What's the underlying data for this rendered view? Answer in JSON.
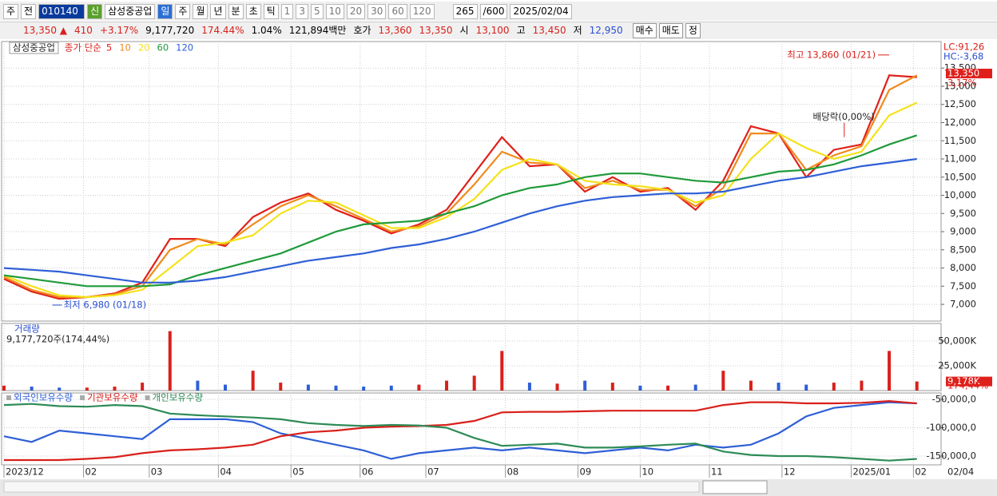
{
  "toolbar": {
    "items": [
      "주",
      "전",
      "010140",
      "신",
      "삼성중공업",
      "일",
      "주",
      "월",
      "년",
      "분",
      "초",
      "틱",
      "1",
      "3",
      "5",
      "10",
      "20",
      "30",
      "60",
      "120",
      "265",
      "/600",
      "2025/02/04"
    ]
  },
  "quote": {
    "items": [
      "13,350 ▲",
      "410",
      "+3.17%",
      "9,177,720",
      "174.44%",
      "1.04%",
      "121,894백만",
      "호가",
      "13,360",
      "13,350",
      "시",
      "13,100",
      "고",
      "13,450",
      "저",
      "12,950",
      "매수",
      "매도",
      "정"
    ]
  },
  "chart_data": [
    {
      "type": "line",
      "title": "삼성중공업",
      "subtitle": "종가 단순",
      "x": [
        0,
        8,
        16,
        24,
        32,
        40,
        48,
        56,
        64,
        72,
        80,
        88,
        96,
        104,
        112,
        120,
        128,
        136,
        144,
        152,
        160,
        168,
        176,
        184,
        192,
        200,
        208,
        216,
        224,
        232,
        240,
        248,
        256,
        264
      ],
      "xlim": [
        0,
        271
      ],
      "ylim": [
        6540,
        14230
      ],
      "yticks": [
        {
          "value": 7000,
          "label": "7,000"
        },
        {
          "value": 7500,
          "label": "7,500"
        },
        {
          "value": 8000,
          "label": "8,000"
        },
        {
          "value": 8500,
          "label": "8,500"
        },
        {
          "value": 9000,
          "label": "9,000"
        },
        {
          "value": 9500,
          "label": "9,500"
        },
        {
          "value": 10000,
          "label": "10,000"
        },
        {
          "value": 10500,
          "label": "10,500"
        },
        {
          "value": 11000,
          "label": "11,000"
        },
        {
          "value": 11500,
          "label": "11,500"
        },
        {
          "value": 12000,
          "label": "12,000"
        },
        {
          "value": 12500,
          "label": "12,500"
        },
        {
          "value": 13000,
          "label": "13,000"
        },
        {
          "value": 13500,
          "label": "13,500"
        }
      ],
      "grid": true,
      "series": [
        {
          "name": "5",
          "color": "#e0201b",
          "values": [
            7700,
            7350,
            7150,
            7200,
            7300,
            7600,
            8800,
            8800,
            8600,
            9400,
            9800,
            10050,
            9600,
            9300,
            8950,
            9200,
            9600,
            10600,
            11600,
            10800,
            10850,
            10100,
            10500,
            10100,
            10200,
            9600,
            10400,
            11900,
            11700,
            10500,
            11250,
            11400,
            13300,
            13250
          ]
        },
        {
          "name": "10",
          "color": "#f08a1c",
          "values": [
            7750,
            7400,
            7200,
            7200,
            7280,
            7500,
            8500,
            8800,
            8650,
            9200,
            9700,
            10000,
            9700,
            9350,
            9000,
            9150,
            9500,
            10300,
            11200,
            10900,
            10850,
            10200,
            10400,
            10150,
            10150,
            9700,
            10200,
            11700,
            11700,
            10700,
            11100,
            11350,
            12900,
            13300
          ]
        },
        {
          "name": "20",
          "color": "#f4e21a",
          "values": [
            7800,
            7500,
            7250,
            7200,
            7250,
            7400,
            8000,
            8600,
            8700,
            8900,
            9500,
            9850,
            9800,
            9450,
            9100,
            9100,
            9400,
            9900,
            10700,
            11000,
            10850,
            10400,
            10300,
            10250,
            10150,
            9800,
            10000,
            11000,
            11700,
            11300,
            11000,
            11200,
            12200,
            12550
          ]
        },
        {
          "name": "60",
          "color": "#1f9a3a",
          "values": [
            7800,
            7700,
            7600,
            7500,
            7500,
            7500,
            7550,
            7800,
            8000,
            8200,
            8400,
            8700,
            9000,
            9200,
            9250,
            9300,
            9500,
            9700,
            10000,
            10200,
            10300,
            10500,
            10600,
            10600,
            10500,
            10400,
            10350,
            10500,
            10650,
            10700,
            10850,
            11100,
            11400,
            11650
          ]
        },
        {
          "name": "120",
          "color": "#2f5fd6",
          "values": [
            8000,
            7950,
            7900,
            7800,
            7700,
            7600,
            7600,
            7650,
            7750,
            7900,
            8050,
            8200,
            8300,
            8400,
            8550,
            8650,
            8800,
            9000,
            9250,
            9500,
            9700,
            9850,
            9950,
            10000,
            10050,
            10050,
            10100,
            10250,
            10400,
            10500,
            10650,
            10800,
            10900,
            11000
          ]
        }
      ],
      "annotations": [
        {
          "text": "최고 13,860 (01/21)",
          "x": 256,
          "y": 13860
        },
        {
          "text": "최저 6,980 (01/18)",
          "x": 14,
          "y": 6980
        },
        {
          "text": "배당락(0,00%)",
          "x": 243,
          "y": 11600
        }
      ],
      "last_value": {
        "value": 13350,
        "label": "13,350"
      },
      "change_label": "3,17%",
      "lc_label": "LC:91,26",
      "hc_label": "HC:-3,68"
    },
    {
      "type": "bar",
      "title": "거래량",
      "subtitle": "9,177,720주(174,44%)",
      "x": [
        0,
        8,
        16,
        24,
        32,
        40,
        48,
        56,
        64,
        72,
        80,
        88,
        96,
        104,
        112,
        120,
        128,
        136,
        144,
        152,
        160,
        168,
        176,
        184,
        192,
        200,
        208,
        216,
        224,
        232,
        240,
        248,
        256,
        264
      ],
      "xlim": [
        0,
        271
      ],
      "ylim": [
        0,
        67700
      ],
      "yticks": [
        {
          "value": 25000,
          "label": "25,000K"
        },
        {
          "value": 50000,
          "label": "50,000K"
        }
      ],
      "values": [
        5000,
        4000,
        3000,
        3000,
        4000,
        8000,
        60000,
        10000,
        6000,
        20000,
        8000,
        6000,
        5000,
        4000,
        5000,
        6000,
        10000,
        15000,
        40000,
        8000,
        7000,
        10000,
        8000,
        5000,
        5000,
        6000,
        20000,
        10000,
        8000,
        6000,
        8000,
        10000,
        40000,
        9178
      ],
      "colors": [
        "#d9201b",
        "#2f5fd6",
        "#2f5fd6",
        "#d9201b",
        "#d9201b",
        "#d9201b",
        "#d9201b",
        "#2f5fd6",
        "#2f5fd6",
        "#d9201b",
        "#d9201b",
        "#2f5fd6",
        "#2f5fd6",
        "#2f5fd6",
        "#2f5fd6",
        "#d9201b",
        "#d9201b",
        "#d9201b",
        "#d9201b",
        "#2f5fd6",
        "#d9201b",
        "#2f5fd6",
        "#d9201b",
        "#2f5fd6",
        "#d9201b",
        "#2f5fd6",
        "#d9201b",
        "#d9201b",
        "#2f5fd6",
        "#2f5fd6",
        "#d9201b",
        "#d9201b",
        "#d9201b",
        "#d9201b"
      ],
      "last_value": {
        "value": 9178,
        "label": "9,178K"
      },
      "ratio_label": "174,44%"
    },
    {
      "type": "line",
      "x": [
        0,
        8,
        16,
        24,
        32,
        40,
        48,
        56,
        64,
        72,
        80,
        88,
        96,
        104,
        112,
        120,
        128,
        136,
        144,
        152,
        160,
        168,
        176,
        184,
        192,
        200,
        208,
        216,
        224,
        232,
        240,
        248,
        256,
        264
      ],
      "xlim": [
        0,
        271
      ],
      "ylim": [
        -165500,
        -38700
      ],
      "yticks": [
        {
          "value": -50000,
          "label": "-50,000,0"
        },
        {
          "value": -100000,
          "label": "-100,000,0"
        },
        {
          "value": -150000,
          "label": "-150,000,0"
        }
      ],
      "xticks": [
        {
          "value": 0,
          "label": "2023/12"
        },
        {
          "value": 23,
          "label": "02"
        },
        {
          "value": 42,
          "label": "03"
        },
        {
          "value": 62,
          "label": "04"
        },
        {
          "value": 83,
          "label": "05"
        },
        {
          "value": 103,
          "label": "06"
        },
        {
          "value": 122,
          "label": "07"
        },
        {
          "value": 145,
          "label": "08"
        },
        {
          "value": 166,
          "label": "09"
        },
        {
          "value": 184,
          "label": "10"
        },
        {
          "value": 204,
          "label": "11"
        },
        {
          "value": 225,
          "label": "12"
        },
        {
          "value": 245,
          "label": "2025/01"
        },
        {
          "value": 263,
          "label": "02"
        }
      ],
      "series": [
        {
          "name": "외국인보유수량",
          "color": "#2f5fd6",
          "values": [
            -115000,
            -125000,
            -105000,
            -110000,
            -115000,
            -120000,
            -85000,
            -85000,
            -85000,
            -90000,
            -110000,
            -120000,
            -130000,
            -140000,
            -155000,
            -145000,
            -140000,
            -135000,
            -140000,
            -135000,
            -140000,
            -145000,
            -140000,
            -135000,
            -140000,
            -130000,
            -135000,
            -130000,
            -110000,
            -80000,
            -65000,
            -60000,
            -55000,
            -57000
          ]
        },
        {
          "name": "기관보유수량",
          "color": "#d9201b",
          "values": [
            -157000,
            -157000,
            -157000,
            -155000,
            -152000,
            -145000,
            -140000,
            -138000,
            -135000,
            -130000,
            -115000,
            -108000,
            -105000,
            -100000,
            -98000,
            -97000,
            -95000,
            -88000,
            -73000,
            -72000,
            -72000,
            -71000,
            -70000,
            -70000,
            -70000,
            -70000,
            -60000,
            -55000,
            -55000,
            -57000,
            -57000,
            -56000,
            -53000,
            -57000
          ]
        },
        {
          "name": "개인보유수량",
          "color": "#2e8b57",
          "values": [
            -60000,
            -58000,
            -62000,
            -63000,
            -60000,
            -62000,
            -75000,
            -78000,
            -80000,
            -82000,
            -85000,
            -92000,
            -95000,
            -97000,
            -95000,
            -96000,
            -100000,
            -118000,
            -132000,
            -130000,
            -128000,
            -135000,
            -135000,
            -133000,
            -130000,
            -128000,
            -142000,
            -148000,
            -150000,
            -150000,
            -152000,
            -155000,
            -158000,
            -155000
          ]
        }
      ],
      "cursor_label": "02/04"
    }
  ]
}
